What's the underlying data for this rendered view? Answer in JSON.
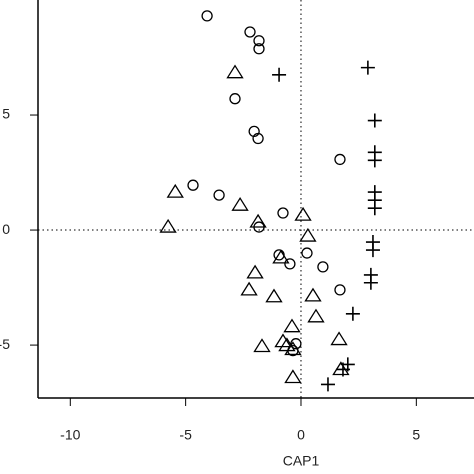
{
  "chart_data": {
    "type": "scatter",
    "xlabel": "CAP1",
    "xlim": [
      -11.4,
      7.5
    ],
    "ylim": [
      -7.3,
      10
    ],
    "xticks": [
      -10,
      -5,
      0,
      5
    ],
    "yticks": [
      -5,
      0,
      5
    ],
    "vline": 0,
    "hline": 0,
    "color": "#000000",
    "series": [
      {
        "marker": "circle",
        "color": "#000000",
        "x": [
          -4.07,
          -2.21,
          -1.82,
          -1.82,
          -2.86,
          -2.03,
          -1.86,
          1.69,
          -4.68,
          -3.55,
          -0.78,
          -1.82,
          0.26,
          -0.95,
          -0.48,
          0.95,
          1.69,
          -0.22,
          -0.35
        ],
        "values": [
          9.31,
          8.61,
          8.23,
          7.88,
          5.71,
          4.29,
          3.98,
          3.07,
          1.95,
          1.52,
          0.74,
          0.13,
          -1.0,
          -1.08,
          -1.47,
          -1.6,
          -2.6,
          -4.94,
          -5.24
        ]
      },
      {
        "marker": "triangle",
        "color": "#000000",
        "x": [
          -2.86,
          -5.45,
          -2.64,
          -5.76,
          -1.86,
          0.09,
          0.3,
          -0.87,
          -1.99,
          -2.25,
          -1.17,
          0.52,
          0.65,
          -0.39,
          -0.78,
          -0.61,
          -0.35,
          -1.69,
          1.65,
          1.73,
          -0.35
        ],
        "values": [
          6.84,
          1.65,
          1.08,
          0.13,
          0.35,
          0.65,
          -0.26,
          -1.21,
          -1.86,
          -2.6,
          -2.9,
          -2.86,
          -3.77,
          -4.2,
          -4.85,
          -5.02,
          -5.19,
          -5.06,
          -4.76,
          -6.06,
          -6.41
        ]
      },
      {
        "marker": "plus",
        "color": "#000000",
        "x": [
          2.9,
          -0.95,
          3.2,
          3.2,
          3.2,
          3.2,
          3.2,
          3.2,
          3.12,
          3.12,
          3.03,
          3.03,
          2.25,
          2.03,
          1.82,
          1.17
        ],
        "values": [
          7.06,
          6.75,
          4.76,
          3.38,
          3.03,
          1.65,
          1.3,
          0.95,
          -0.52,
          -0.87,
          -1.95,
          -2.29,
          -3.64,
          -5.84,
          -6.06,
          -6.71
        ]
      }
    ]
  }
}
